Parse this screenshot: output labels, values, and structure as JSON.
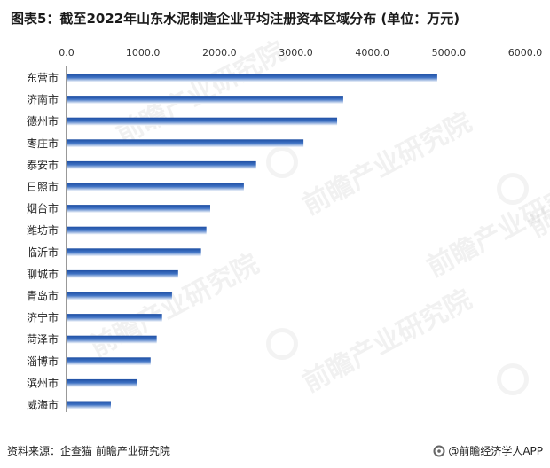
{
  "title": "图表5：截至2022年山东水泥制造企业平均注册资本区域分布 (单位：万元)",
  "source": "资料来源：企查猫 前瞻产业研究院",
  "brand": "@前瞻经济学人APP",
  "watermark": "前瞻产业研究院",
  "chart_data": {
    "type": "bar",
    "orientation": "horizontal",
    "categories": [
      "东营市",
      "济南市",
      "德州市",
      "枣庄市",
      "泰安市",
      "日照市",
      "烟台市",
      "潍坊市",
      "临沂市",
      "聊城市",
      "青岛市",
      "济宁市",
      "菏泽市",
      "淄博市",
      "滨州市",
      "威海市"
    ],
    "values": [
      4850,
      3620,
      3540,
      3100,
      2480,
      2320,
      1880,
      1830,
      1760,
      1460,
      1380,
      1250,
      1180,
      1100,
      920,
      580
    ],
    "x_ticks": [
      "0.0",
      "1000.0",
      "2000.0",
      "3000.0",
      "4000.0",
      "5000.0",
      "6000.0"
    ],
    "xlim": [
      0,
      6000
    ],
    "axis_position": "top",
    "bar_gradient": [
      "#1f4fa3",
      "#ffffff"
    ]
  }
}
